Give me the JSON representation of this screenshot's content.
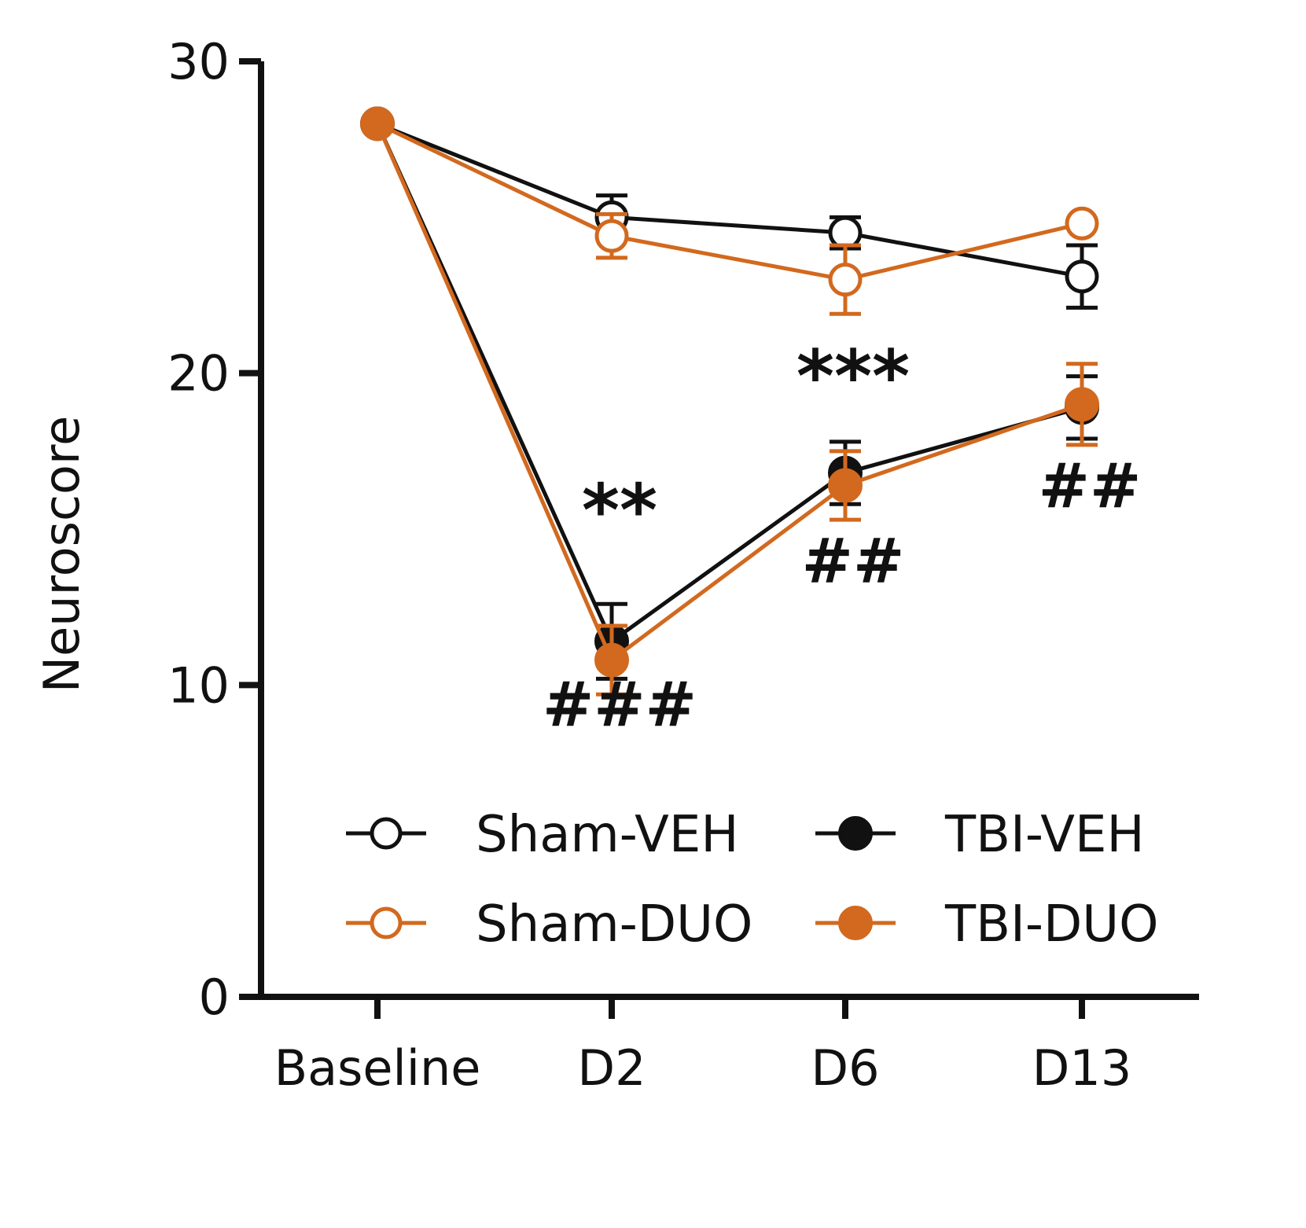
{
  "chart_data": {
    "type": "line",
    "title": "",
    "xlabel": "",
    "ylabel": "Neuroscore",
    "categories": [
      "Baseline",
      "D2",
      "D6",
      "D13"
    ],
    "ylim": [
      0,
      30
    ],
    "yticks": [
      0,
      10,
      20,
      30
    ],
    "grid": false,
    "legend_placement": "bottom-center",
    "series": [
      {
        "name": "Sham-VEH",
        "color": "#111111",
        "marker": "open-circle",
        "values": [
          28,
          25,
          24.5,
          23.1
        ],
        "errors": [
          0,
          0.7,
          0.5,
          1.0
        ]
      },
      {
        "name": "Sham-DUO",
        "color": "#D2691E",
        "marker": "open-circle",
        "values": [
          28,
          24.4,
          23,
          24.8
        ],
        "errors": [
          0,
          0.7,
          1.1,
          0
        ]
      },
      {
        "name": "TBI-VEH",
        "color": "#111111",
        "marker": "filled-circle",
        "values": [
          28,
          11.4,
          16.8,
          18.9
        ],
        "errors": [
          0,
          1.2,
          1.0,
          1.0
        ]
      },
      {
        "name": "TBI-DUO",
        "color": "#D2691E",
        "marker": "filled-circle",
        "values": [
          28,
          10.8,
          16.4,
          19.0
        ],
        "errors": [
          0,
          1.1,
          1.1,
          1.3
        ]
      }
    ],
    "annotations": [
      {
        "category": "D2",
        "y": 14.8,
        "text": "**",
        "kind": "star"
      },
      {
        "category": "D2",
        "y": 8.7,
        "text": "###",
        "kind": "hash"
      },
      {
        "category": "D6",
        "y": 19.1,
        "text": "***",
        "kind": "star"
      },
      {
        "category": "D6",
        "y": 13.3,
        "text": "##",
        "kind": "hash"
      },
      {
        "category": "D13",
        "y": 15.7,
        "text": "##",
        "kind": "hash"
      }
    ]
  }
}
